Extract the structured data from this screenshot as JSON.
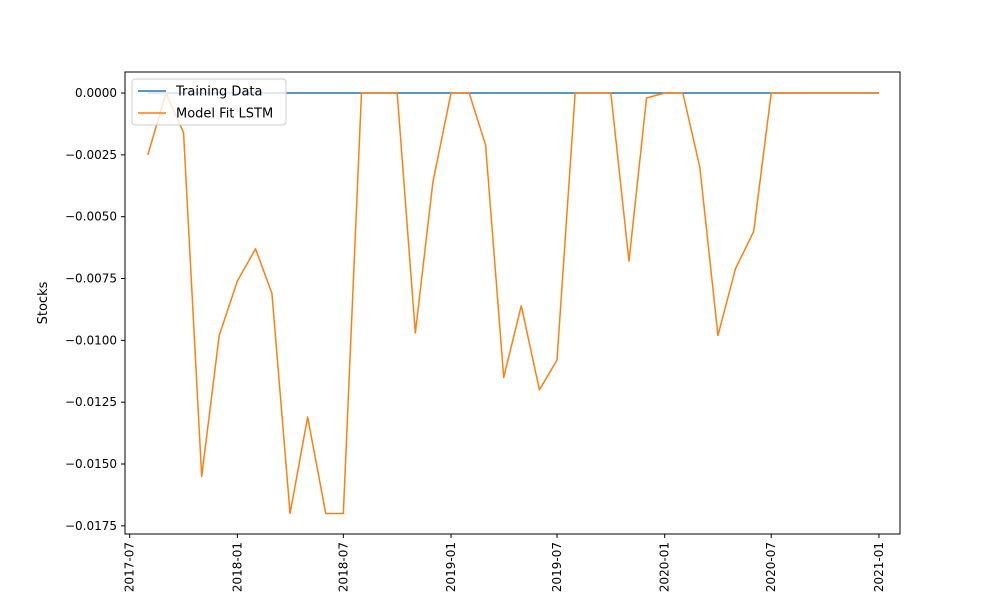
{
  "chart_data": {
    "type": "line",
    "title": "",
    "xlabel": "",
    "ylabel": "Stocks",
    "x_ticks": [
      "2017-07",
      "2018-01",
      "2018-07",
      "2019-01",
      "2019-07",
      "2020-01",
      "2020-07",
      "2021-01"
    ],
    "y_ticks": [
      "0.0000",
      "−0.0025",
      "−0.0050",
      "−0.0075",
      "−0.0100",
      "−0.0125",
      "−0.0150",
      "−0.0175"
    ],
    "xlim": [
      "2017-06-23",
      "2021-02-06"
    ],
    "ylim": [
      -0.01783,
      0.00085
    ],
    "grid": false,
    "legend_position": "top-left",
    "series": [
      {
        "name": "Training Data",
        "color": "#1f77b4",
        "x": [
          "2017-08-01",
          "2021-01-01"
        ],
        "y": [
          0.0,
          0.0
        ]
      },
      {
        "name": "Model Fit LSTM",
        "color": "#ff7f0e",
        "x": [
          "2017-08-01",
          "2017-09-01",
          "2017-10-01",
          "2017-11-01",
          "2017-12-01",
          "2018-01-01",
          "2018-02-01",
          "2018-03-01",
          "2018-04-01",
          "2018-05-01",
          "2018-06-01",
          "2018-07-01",
          "2018-08-01",
          "2018-09-01",
          "2018-10-01",
          "2018-11-01",
          "2018-12-01",
          "2019-01-01",
          "2019-02-01",
          "2019-03-01",
          "2019-04-01",
          "2019-05-01",
          "2019-06-01",
          "2019-07-01",
          "2019-08-01",
          "2019-09-01",
          "2019-10-01",
          "2019-11-01",
          "2019-12-01",
          "2020-01-01",
          "2020-02-01",
          "2020-03-01",
          "2020-04-01",
          "2020-05-01",
          "2020-06-01",
          "2020-07-01",
          "2020-08-01",
          "2020-09-01",
          "2020-10-01",
          "2020-11-01",
          "2020-12-01",
          "2021-01-01"
        ],
        "y": [
          -0.0025,
          0.0,
          -0.0016,
          -0.0155,
          -0.0098,
          -0.0076,
          -0.0063,
          -0.0081,
          -0.017,
          -0.0131,
          -0.017,
          -0.017,
          0.0,
          0.0,
          0.0,
          -0.0097,
          -0.0036,
          0.0,
          0.0,
          -0.0021,
          -0.0115,
          -0.0086,
          -0.012,
          -0.0108,
          0.0,
          0.0,
          0.0,
          -0.0068,
          -0.0002,
          0.0,
          0.0,
          -0.003,
          -0.0098,
          -0.0071,
          -0.0056,
          0.0,
          0.0,
          0.0,
          0.0,
          0.0,
          0.0,
          0.0
        ]
      }
    ]
  }
}
